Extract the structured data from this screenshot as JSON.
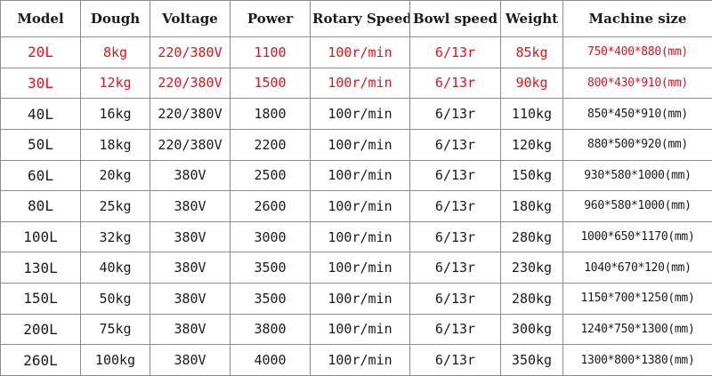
{
  "table": {
    "headers": [
      "Model",
      "Dough",
      "Voltage",
      "Power",
      "Rotary Speed",
      "Bowl speed",
      "Weight",
      "Machine size"
    ],
    "rows": [
      {
        "model": "20L",
        "dough": "8kg",
        "voltage": "220/380V",
        "power": "1100",
        "rotary_speed": "100r/min",
        "bowl_speed": "6/13r",
        "weight": "85kg",
        "size": "750*400*880(mm)",
        "highlight": true
      },
      {
        "model": "30L",
        "dough": "12kg",
        "voltage": "220/380V",
        "power": "1500",
        "rotary_speed": "100r/min",
        "bowl_speed": "6/13r",
        "weight": "90kg",
        "size": "800*430*910(mm)",
        "highlight": true
      },
      {
        "model": "40L",
        "dough": "16kg",
        "voltage": "220/380V",
        "power": "1800",
        "rotary_speed": "100r/min",
        "bowl_speed": "6/13r",
        "weight": "110kg",
        "size": "850*450*910(mm)",
        "highlight": false
      },
      {
        "model": "50L",
        "dough": "18kg",
        "voltage": "220/380V",
        "power": "2200",
        "rotary_speed": "100r/min",
        "bowl_speed": "6/13r",
        "weight": "120kg",
        "size": "880*500*920(mm)",
        "highlight": false
      },
      {
        "model": "60L",
        "dough": "20kg",
        "voltage": "380V",
        "power": "2500",
        "rotary_speed": "100r/min",
        "bowl_speed": "6/13r",
        "weight": "150kg",
        "size": "930*580*1000(mm)",
        "highlight": false
      },
      {
        "model": "80L",
        "dough": "25kg",
        "voltage": "380V",
        "power": "2600",
        "rotary_speed": "100r/min",
        "bowl_speed": "6/13r",
        "weight": "180kg",
        "size": "960*580*1000(mm)",
        "highlight": false
      },
      {
        "model": "100L",
        "dough": "32kg",
        "voltage": "380V",
        "power": "3000",
        "rotary_speed": "100r/min",
        "bowl_speed": "6/13r",
        "weight": "280kg",
        "size": "1000*650*1170(mm)",
        "highlight": false
      },
      {
        "model": "130L",
        "dough": "40kg",
        "voltage": "380V",
        "power": "3500",
        "rotary_speed": "100r/min",
        "bowl_speed": "6/13r",
        "weight": "230kg",
        "size": "1040*670*120(mm)",
        "highlight": false
      },
      {
        "model": "150L",
        "dough": "50kg",
        "voltage": "380V",
        "power": "3500",
        "rotary_speed": "100r/min",
        "bowl_speed": "6/13r",
        "weight": "280kg",
        "size": "1150*700*1250(mm)",
        "highlight": false
      },
      {
        "model": "200L",
        "dough": "75kg",
        "voltage": "380V",
        "power": "3800",
        "rotary_speed": "100r/min",
        "bowl_speed": "6/13r",
        "weight": "300kg",
        "size": "1240*750*1300(mm)",
        "highlight": false
      },
      {
        "model": "260L",
        "dough": "100kg",
        "voltage": "380V",
        "power": "4000",
        "rotary_speed": "100r/min",
        "bowl_speed": "6/13r",
        "weight": "350kg",
        "size": "1300*800*1380(mm)",
        "highlight": false
      }
    ]
  },
  "colors": {
    "highlight_text": "#e3121b",
    "normal_text": "#1a1a1a",
    "grid": "#8c8c8c"
  }
}
